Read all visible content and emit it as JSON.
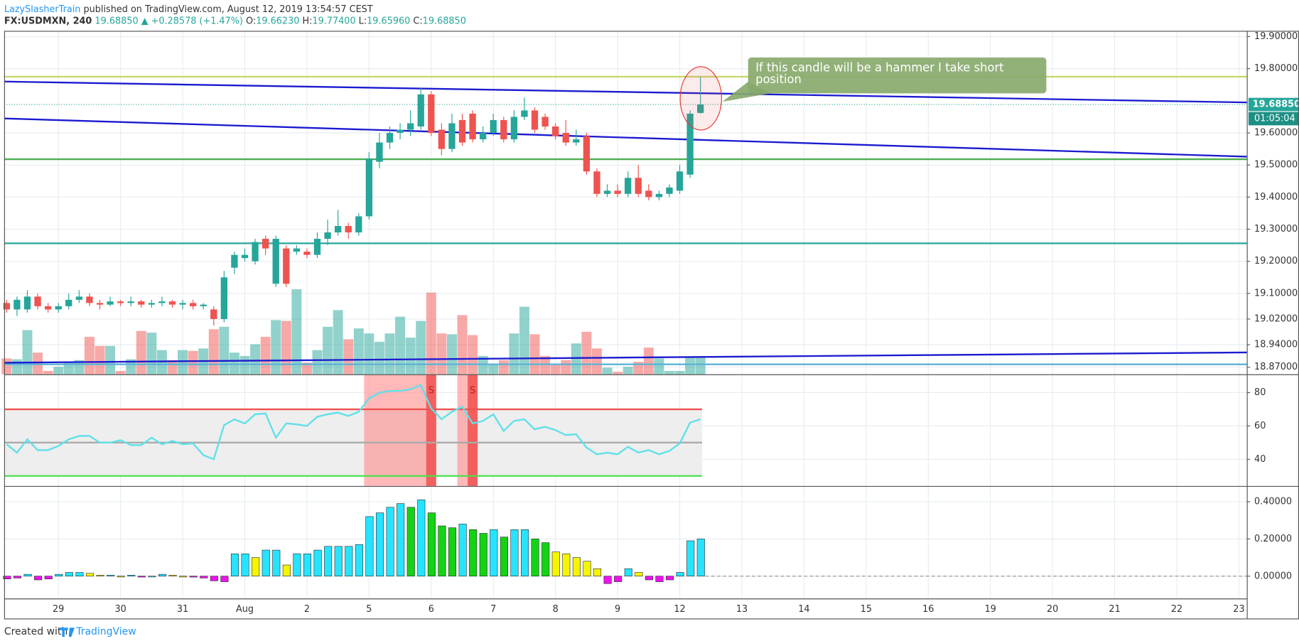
{
  "header": {
    "author": "LazySlasherTrain",
    "published": "published on TradingView.com, August 12, 2019 13:54:57 CEST",
    "symbol": "FX:USDMXN, 240",
    "last": "19.68850",
    "change": "▲ +0.28578 (+1.47%)",
    "ohlc": [
      {
        "label": "O:",
        "value": "19.66230"
      },
      {
        "label": "H:",
        "value": "19.77400"
      },
      {
        "label": "L:",
        "value": "19.65960"
      },
      {
        "label": "C:",
        "value": "19.68850"
      }
    ]
  },
  "annotation": [
    "If this candle will be a hammer I take short",
    "position"
  ],
  "footer": {
    "text": "Created with",
    "brand": "TradingView"
  },
  "chart_data": [
    {
      "type": "candlestick",
      "up_color": "#26a69a",
      "down_color": "#ef5350",
      "xlim": [
        -0.24,
        119.76
      ],
      "xticks": [
        {
          "value": 5,
          "label": "29"
        },
        {
          "value": 11,
          "label": "30"
        },
        {
          "value": 17,
          "label": "31"
        },
        {
          "value": 23,
          "label": "Aug"
        },
        {
          "value": 29,
          "label": "2"
        },
        {
          "value": 35,
          "label": "5"
        },
        {
          "value": 41,
          "label": "6"
        },
        {
          "value": 47,
          "label": "7"
        },
        {
          "value": 53,
          "label": "8"
        },
        {
          "value": 59,
          "label": "9"
        },
        {
          "value": 65,
          "label": "12"
        },
        {
          "value": 71,
          "label": "13"
        },
        {
          "value": 77,
          "label": "14"
        },
        {
          "value": 83,
          "label": "15"
        },
        {
          "value": 89,
          "label": "16"
        },
        {
          "value": 95,
          "label": "19"
        },
        {
          "value": 101,
          "label": "20"
        },
        {
          "value": 107,
          "label": "21"
        },
        {
          "value": 113,
          "label": "22"
        },
        {
          "value": 119,
          "label": "23"
        }
      ],
      "ylim": [
        18.848,
        19.918
      ],
      "yticks": [
        {
          "value": 19.9,
          "label": "19.90000"
        },
        {
          "value": 19.8,
          "label": "19.80000"
        },
        {
          "value": 19.6,
          "label": "19.60000"
        },
        {
          "value": 19.5,
          "label": "19.50000"
        },
        {
          "value": 19.4,
          "label": "19.40000"
        },
        {
          "value": 19.3,
          "label": "19.30000"
        },
        {
          "value": 19.2,
          "label": "19.20000"
        },
        {
          "value": 19.1,
          "label": "19.10000"
        },
        {
          "value": 19.02,
          "label": "19.02000"
        },
        {
          "value": 18.94,
          "label": "18.94000"
        },
        {
          "value": 18.87,
          "label": "18.87000"
        }
      ],
      "grid": true,
      "last_price": {
        "value": 19.6885,
        "label": "19.68850"
      },
      "countdown": "01:05:04",
      "open": [
        19.07,
        19.05,
        19.05,
        19.09,
        19.06,
        19.05,
        19.06,
        19.08,
        19.09,
        19.07,
        19.065,
        19.075,
        19.07,
        19.075,
        19.065,
        19.07,
        19.075,
        19.065,
        19.07,
        19.06,
        19.05,
        19.02,
        19.18,
        19.21,
        19.2,
        19.27,
        19.13,
        19.24,
        19.23,
        19.23,
        19.22,
        19.27,
        19.29,
        19.31,
        19.29,
        19.34,
        19.51,
        19.57,
        19.6,
        19.61,
        19.62,
        19.72,
        19.61,
        19.55,
        19.64,
        19.66,
        19.58,
        19.6,
        19.64,
        19.58,
        19.65,
        19.67,
        19.65,
        19.62,
        19.6,
        19.57,
        19.59,
        19.48,
        19.41,
        19.42,
        19.41,
        19.46,
        19.42,
        19.4,
        19.41,
        19.42,
        19.47,
        19.6623
      ],
      "high": [
        19.08,
        19.09,
        19.11,
        19.1,
        19.07,
        19.07,
        19.1,
        19.11,
        19.1,
        19.08,
        19.09,
        19.08,
        19.09,
        19.08,
        19.08,
        19.09,
        19.08,
        19.08,
        19.08,
        19.07,
        19.06,
        19.17,
        19.23,
        19.24,
        19.27,
        19.28,
        19.28,
        19.25,
        19.25,
        19.24,
        19.29,
        19.33,
        19.36,
        19.32,
        19.35,
        19.54,
        19.6,
        19.62,
        19.63,
        19.67,
        19.74,
        19.73,
        19.63,
        19.66,
        19.66,
        19.67,
        19.62,
        19.66,
        19.65,
        19.67,
        19.71,
        19.68,
        19.66,
        19.63,
        19.64,
        19.61,
        19.6,
        19.49,
        19.44,
        19.44,
        19.48,
        19.5,
        19.44,
        19.42,
        19.44,
        19.5,
        19.67,
        19.774
      ],
      "low": [
        19.04,
        19.03,
        19.04,
        19.05,
        19.04,
        19.04,
        19.05,
        19.07,
        19.06,
        19.05,
        19.06,
        19.06,
        19.06,
        19.055,
        19.055,
        19.06,
        19.055,
        19.05,
        19.05,
        19.05,
        19.0,
        19.01,
        19.16,
        19.2,
        19.19,
        19.22,
        19.12,
        19.12,
        19.22,
        19.21,
        19.21,
        19.25,
        19.28,
        19.27,
        19.28,
        19.33,
        19.49,
        19.55,
        19.58,
        19.59,
        19.61,
        19.59,
        19.53,
        19.54,
        19.56,
        19.57,
        19.57,
        19.59,
        19.57,
        19.57,
        19.64,
        19.6,
        19.61,
        19.58,
        19.56,
        19.56,
        19.47,
        19.4,
        19.4,
        19.4,
        19.4,
        19.4,
        19.39,
        19.39,
        19.4,
        19.41,
        19.46,
        19.6596
      ],
      "close": [
        19.05,
        19.08,
        19.09,
        19.06,
        19.05,
        19.06,
        19.08,
        19.09,
        19.07,
        19.065,
        19.075,
        19.07,
        19.075,
        19.065,
        19.07,
        19.075,
        19.065,
        19.07,
        19.06,
        19.065,
        19.02,
        19.15,
        19.22,
        19.22,
        19.26,
        19.24,
        19.27,
        19.13,
        19.24,
        19.22,
        19.27,
        19.29,
        19.31,
        19.29,
        19.34,
        19.52,
        19.57,
        19.6,
        19.61,
        19.63,
        19.72,
        19.6,
        19.55,
        19.63,
        19.57,
        19.58,
        19.6,
        19.64,
        19.58,
        19.65,
        19.67,
        19.61,
        19.62,
        19.59,
        19.57,
        19.58,
        19.48,
        19.41,
        19.42,
        19.41,
        19.46,
        19.41,
        19.4,
        19.41,
        19.43,
        19.48,
        19.66,
        19.6885
      ],
      "volume": [
        19,
        18,
        53,
        26,
        4,
        9,
        14,
        17,
        45,
        34,
        34,
        4,
        18,
        52,
        50,
        29,
        17,
        29,
        28,
        31,
        54,
        57,
        26,
        22,
        36,
        45,
        65,
        64,
        102,
        14,
        29,
        57,
        77,
        42,
        55,
        49,
        39,
        49,
        69,
        44,
        64,
        98,
        49,
        48,
        71,
        47,
        22,
        12,
        17,
        49,
        81,
        48,
        22,
        12,
        17,
        37,
        51,
        31,
        8,
        3,
        9,
        15,
        32,
        19,
        4,
        4,
        20,
        20
      ],
      "levels": [
        {
          "value": 19.775,
          "color": "#c5d86d"
        },
        {
          "value": 19.518,
          "color": "#4caf50"
        },
        {
          "value": 19.256,
          "color": "#26a69a"
        },
        {
          "value": 18.879,
          "color": "#5fb3d4"
        }
      ],
      "trendlines": [
        {
          "x": [
            -0.24,
            119.76
          ],
          "y": [
            19.76,
            19.695
          ],
          "color": "#1a1ad0"
        },
        {
          "x": [
            -0.24,
            119.76
          ],
          "y": [
            19.645,
            19.526
          ],
          "color": "#1a1ad0"
        },
        {
          "x": [
            -0.24,
            119.76
          ],
          "y": [
            18.884,
            18.916
          ],
          "color": "#1a1ad0"
        }
      ]
    },
    {
      "type": "line",
      "color": "#5ee0ea",
      "ylim": [
        24,
        90.5
      ],
      "yticks": [
        40,
        60,
        80
      ],
      "grid": true,
      "levels": [
        {
          "value": 70,
          "color": "#ef5350"
        },
        {
          "value": 50,
          "color": "#aaaaaa"
        },
        {
          "value": 30,
          "color": "#4ce04c"
        }
      ],
      "signals": [
        {
          "label": "S",
          "index": 41,
          "zone_start": 35
        },
        {
          "label": "S",
          "index": 45,
          "zone_start": 44
        }
      ],
      "values": [
        49,
        44,
        52,
        45.5,
        45.5,
        48,
        52,
        54,
        54,
        50,
        50,
        51.5,
        48.5,
        48.5,
        53,
        49,
        51,
        49,
        49.5,
        42.5,
        40,
        60.5,
        64,
        61.5,
        67,
        67.5,
        53,
        61.5,
        61,
        60,
        65.5,
        67,
        68,
        66,
        68.5,
        76.5,
        80,
        81,
        81,
        82,
        84.5,
        70.5,
        64,
        68.5,
        71.5,
        61.5,
        63,
        67,
        57,
        63,
        64,
        58,
        59.5,
        57.5,
        54.5,
        55,
        47,
        43,
        44,
        43,
        47.5,
        44,
        45.5,
        43,
        45,
        49.5,
        62,
        64
      ]
    },
    {
      "type": "bar",
      "ylim": [
        -0.12,
        0.48
      ],
      "grid": true,
      "palette": {
        "rising": "#26e4ff",
        "falling": "#14d314",
        "weak": "#f5f500",
        "negative": "#ee11ee"
      },
      "yticks": [
        {
          "value": 0.4,
          "label": "0.40000"
        },
        {
          "value": 0.2,
          "label": "0.20000"
        },
        {
          "value": 0,
          "label": "0.00000"
        }
      ],
      "values": [
        -0.015,
        -0.01,
        0.01,
        -0.02,
        -0.015,
        0.01,
        0.02,
        0.02,
        0.015,
        0.005,
        0.005,
        0,
        0.005,
        -0.005,
        0,
        0.01,
        0.005,
        0,
        -0.005,
        -0.01,
        -0.025,
        -0.03,
        0.12,
        0.12,
        0.1,
        0.14,
        0.14,
        0.06,
        0.12,
        0.12,
        0.14,
        0.16,
        0.16,
        0.16,
        0.17,
        0.32,
        0.34,
        0.37,
        0.39,
        0.37,
        0.41,
        0.34,
        0.27,
        0.26,
        0.28,
        0.25,
        0.23,
        0.25,
        0.21,
        0.25,
        0.25,
        0.2,
        0.18,
        0.13,
        0.12,
        0.1,
        0.08,
        0.04,
        -0.04,
        -0.03,
        0.04,
        0.02,
        -0.02,
        -0.03,
        -0.02,
        0.02,
        0.19,
        0.2
      ]
    }
  ]
}
